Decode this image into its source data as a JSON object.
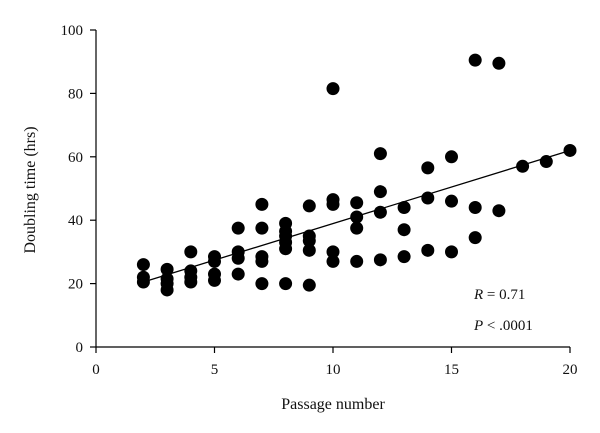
{
  "chart_data": {
    "type": "scatter",
    "xlabel": "Passage number",
    "ylabel": "Doubling time (hrs)",
    "xlim": [
      0,
      20
    ],
    "ylim": [
      0,
      100
    ],
    "x_ticks": [
      "0",
      "5",
      "10",
      "15",
      "20"
    ],
    "y_ticks": [
      "0",
      "20",
      "40",
      "60",
      "80",
      "100"
    ],
    "grid": false,
    "points": [
      {
        "x": 2,
        "y": 26
      },
      {
        "x": 2,
        "y": 22
      },
      {
        "x": 2,
        "y": 20.5
      },
      {
        "x": 3,
        "y": 24.5
      },
      {
        "x": 3,
        "y": 21.5
      },
      {
        "x": 3,
        "y": 20
      },
      {
        "x": 3,
        "y": 18
      },
      {
        "x": 4,
        "y": 30
      },
      {
        "x": 4,
        "y": 24
      },
      {
        "x": 4,
        "y": 22
      },
      {
        "x": 4,
        "y": 20.5
      },
      {
        "x": 5,
        "y": 28.5
      },
      {
        "x": 5,
        "y": 27
      },
      {
        "x": 5,
        "y": 23
      },
      {
        "x": 5,
        "y": 21
      },
      {
        "x": 6,
        "y": 37.5
      },
      {
        "x": 6,
        "y": 30
      },
      {
        "x": 6,
        "y": 28
      },
      {
        "x": 6,
        "y": 23
      },
      {
        "x": 7,
        "y": 45
      },
      {
        "x": 7,
        "y": 37.5
      },
      {
        "x": 7,
        "y": 28.5
      },
      {
        "x": 7,
        "y": 27
      },
      {
        "x": 7,
        "y": 20
      },
      {
        "x": 8,
        "y": 39
      },
      {
        "x": 8,
        "y": 36.5
      },
      {
        "x": 8,
        "y": 35
      },
      {
        "x": 8,
        "y": 33
      },
      {
        "x": 8,
        "y": 31
      },
      {
        "x": 8,
        "y": 20
      },
      {
        "x": 9,
        "y": 44.5
      },
      {
        "x": 9,
        "y": 35
      },
      {
        "x": 9,
        "y": 33.5
      },
      {
        "x": 9,
        "y": 30.5
      },
      {
        "x": 9,
        "y": 19.5
      },
      {
        "x": 10,
        "y": 81.5
      },
      {
        "x": 10,
        "y": 46.5
      },
      {
        "x": 10,
        "y": 45
      },
      {
        "x": 10,
        "y": 30
      },
      {
        "x": 10,
        "y": 27
      },
      {
        "x": 11,
        "y": 45.5
      },
      {
        "x": 11,
        "y": 41
      },
      {
        "x": 11,
        "y": 37.5
      },
      {
        "x": 11,
        "y": 27
      },
      {
        "x": 12,
        "y": 61
      },
      {
        "x": 12,
        "y": 49
      },
      {
        "x": 12,
        "y": 42.5
      },
      {
        "x": 12,
        "y": 27.5
      },
      {
        "x": 13,
        "y": 44
      },
      {
        "x": 13,
        "y": 37
      },
      {
        "x": 13,
        "y": 28.5
      },
      {
        "x": 14,
        "y": 56.5
      },
      {
        "x": 14,
        "y": 47
      },
      {
        "x": 14,
        "y": 30.5
      },
      {
        "x": 15,
        "y": 60
      },
      {
        "x": 15,
        "y": 46
      },
      {
        "x": 15,
        "y": 30
      },
      {
        "x": 16,
        "y": 90.5
      },
      {
        "x": 16,
        "y": 44
      },
      {
        "x": 16,
        "y": 34.5
      },
      {
        "x": 17,
        "y": 89.5
      },
      {
        "x": 17,
        "y": 43
      },
      {
        "x": 18,
        "y": 57
      },
      {
        "x": 19,
        "y": 58.5
      },
      {
        "x": 20,
        "y": 62
      }
    ],
    "trendline": {
      "x1": 2,
      "y1": 20.5,
      "x2": 20,
      "y2": 62
    },
    "annotations": {
      "r_symbol": "R",
      "r_value": " = 0.71",
      "p_symbol": "P",
      "p_value": " < .0001"
    }
  }
}
